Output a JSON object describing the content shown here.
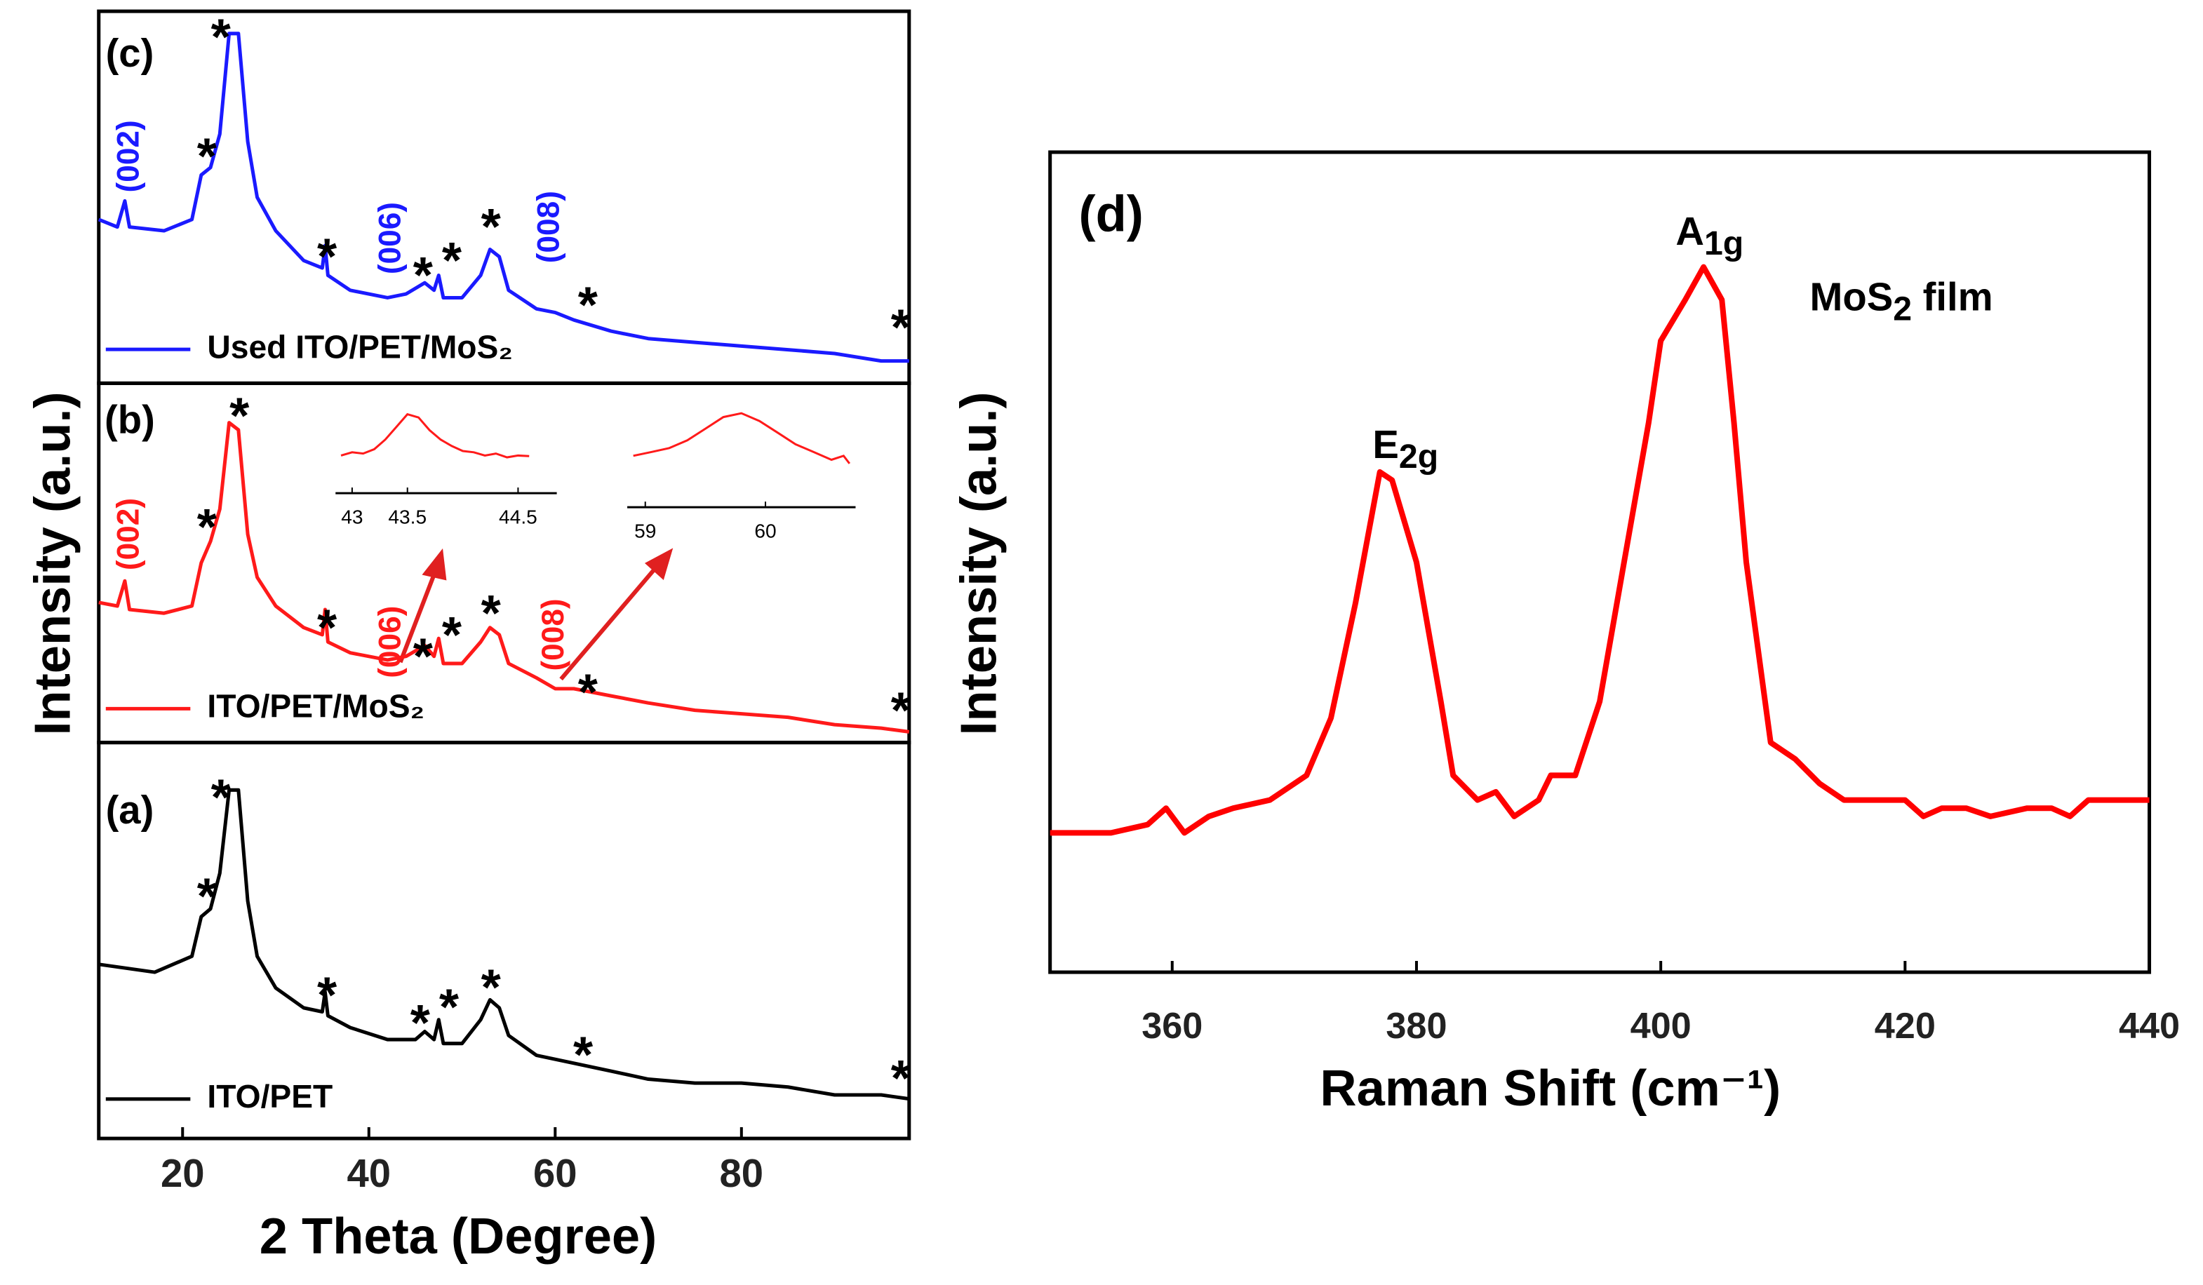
{
  "chart_data": [
    {
      "type": "line",
      "panel_label": "(c)",
      "ylabel": "Intensity (a.u.)",
      "xlim": [
        11,
        98
      ],
      "ylim": [
        0,
        100
      ],
      "series": [
        {
          "name": "Used ITO/PET/MoS₂",
          "color": "#1a1aff",
          "x": [
            11,
            13,
            13.8,
            14.3,
            18,
            21,
            22,
            23,
            24,
            25,
            26,
            27,
            28,
            30,
            33,
            35,
            35.3,
            35.6,
            38,
            42,
            44,
            46,
            47,
            47.5,
            48,
            50,
            52,
            53,
            54,
            55,
            58,
            60,
            62,
            66,
            70,
            75,
            80,
            85,
            90,
            95,
            98
          ],
          "values": [
            44,
            42,
            49,
            42,
            41,
            44,
            56,
            58,
            67,
            94,
            94,
            65,
            50,
            41,
            33,
            31,
            37,
            29,
            25,
            23,
            24,
            27,
            25,
            29,
            23,
            23,
            29,
            36,
            34,
            25,
            20,
            19,
            17,
            14,
            12,
            11,
            10,
            9,
            8,
            6,
            6
          ]
        }
      ],
      "annotations": [
        {
          "text": "*",
          "x": 24.1,
          "y": 95
        },
        {
          "text": "*",
          "x": 22.6,
          "y": 63
        },
        {
          "text": "*",
          "x": 35.5,
          "y": 36
        },
        {
          "text": "*",
          "x": 45.8,
          "y": 31
        },
        {
          "text": "*",
          "x": 48.9,
          "y": 35
        },
        {
          "text": "*",
          "x": 53.1,
          "y": 44
        },
        {
          "text": "*",
          "x": 63.5,
          "y": 23
        },
        {
          "text": "*",
          "x": 97.1,
          "y": 17
        }
      ],
      "hkl_labels": [
        {
          "text": "(002)",
          "x": 14.4,
          "y": 61
        },
        {
          "text": "(006)",
          "x": 42.5,
          "y": 39
        },
        {
          "text": "(008)",
          "x": 59.5,
          "y": 42
        }
      ]
    },
    {
      "type": "line",
      "panel_label": "(b)",
      "xlim": [
        11,
        98
      ],
      "ylim": [
        0,
        100
      ],
      "series": [
        {
          "name": "ITO/PET/MoS₂",
          "color": "#ff1a1a",
          "x": [
            11,
            13,
            13.8,
            14.3,
            18,
            21,
            22,
            23,
            24,
            25,
            26,
            27,
            28,
            30,
            33,
            35,
            35.3,
            35.6,
            38,
            42,
            44,
            46,
            47,
            47.5,
            48,
            50,
            52,
            53,
            54,
            55,
            58,
            60,
            62,
            66,
            70,
            75,
            80,
            85,
            90,
            95,
            98
          ],
          "values": [
            39,
            38,
            45,
            37,
            36,
            38,
            50,
            56,
            65,
            89,
            87,
            58,
            46,
            38,
            32,
            30,
            37,
            28,
            25,
            23,
            24,
            27,
            24,
            29,
            22,
            22,
            28,
            32,
            30,
            22,
            18,
            15,
            15,
            13,
            11,
            9,
            8,
            7,
            5,
            4,
            3
          ]
        }
      ],
      "annotations": [
        {
          "text": "*",
          "x": 26.1,
          "y": 93
        },
        {
          "text": "*",
          "x": 22.6,
          "y": 62
        },
        {
          "text": "*",
          "x": 35.5,
          "y": 34
        },
        {
          "text": "*",
          "x": 45.8,
          "y": 26
        },
        {
          "text": "*",
          "x": 48.9,
          "y": 32
        },
        {
          "text": "*",
          "x": 53.1,
          "y": 38
        },
        {
          "text": "*",
          "x": 63.5,
          "y": 16
        },
        {
          "text": "*",
          "x": 97.1,
          "y": 11
        }
      ],
      "hkl_labels": [
        {
          "text": "(002)",
          "x": 14.4,
          "y": 58
        },
        {
          "text": "(006)",
          "x": 42.5,
          "y": 28
        },
        {
          "text": "(008)",
          "x": 60,
          "y": 30
        }
      ],
      "insets": [
        {
          "xlim": [
            42.85,
            44.85
          ],
          "xticks": [
            43,
            43.5,
            44.5
          ],
          "ylim": [
            0,
            100
          ],
          "x": [
            42.9,
            43.0,
            43.1,
            43.2,
            43.3,
            43.4,
            43.5,
            43.6,
            43.7,
            43.8,
            43.9,
            44.0,
            44.1,
            44.2,
            44.3,
            44.4,
            44.5,
            44.6
          ],
          "values": [
            15,
            20,
            18,
            25,
            40,
            60,
            80,
            75,
            55,
            40,
            30,
            22,
            20,
            15,
            18,
            12,
            15,
            14
          ]
        },
        {
          "xlim": [
            58.85,
            60.75
          ],
          "xticks": [
            59,
            60
          ],
          "ylim": [
            0,
            100
          ],
          "x": [
            58.9,
            59.05,
            59.2,
            59.35,
            59.5,
            59.65,
            59.8,
            59.95,
            60.1,
            60.25,
            60.4,
            60.55,
            60.65,
            60.7
          ],
          "values": [
            30,
            35,
            40,
            50,
            65,
            80,
            85,
            75,
            60,
            45,
            35,
            25,
            30,
            20
          ]
        }
      ]
    },
    {
      "type": "line",
      "panel_label": "(a)",
      "xlabel": "2 Theta (Degree)",
      "xlim": [
        11,
        98
      ],
      "ylim": [
        0,
        100
      ],
      "xticks": [
        20,
        40,
        60,
        80
      ],
      "series": [
        {
          "name": "ITO/PET",
          "color": "#000000",
          "x": [
            11,
            17,
            21,
            22,
            23,
            24,
            25,
            26,
            27,
            28,
            30,
            33,
            35,
            35.3,
            35.6,
            38,
            42,
            45,
            46,
            47,
            47.5,
            48,
            50,
            52,
            53,
            54,
            55,
            58,
            62,
            66,
            70,
            75,
            80,
            85,
            90,
            95,
            98
          ],
          "values": [
            44,
            42,
            46,
            56,
            58,
            67,
            88,
            88,
            60,
            46,
            38,
            33,
            32,
            37,
            31,
            28,
            25,
            25,
            27,
            25,
            30,
            24,
            24,
            30,
            35,
            33,
            26,
            21,
            19,
            17,
            15,
            14,
            14,
            13,
            11,
            11,
            10
          ]
        }
      ],
      "annotations": [
        {
          "text": "*",
          "x": 24.1,
          "y": 88
        },
        {
          "text": "*",
          "x": 22.6,
          "y": 63
        },
        {
          "text": "*",
          "x": 35.5,
          "y": 38
        },
        {
          "text": "*",
          "x": 45.5,
          "y": 31
        },
        {
          "text": "*",
          "x": 48.6,
          "y": 35
        },
        {
          "text": "*",
          "x": 53.1,
          "y": 40
        },
        {
          "text": "*",
          "x": 63,
          "y": 23
        },
        {
          "text": "*",
          "x": 97.1,
          "y": 17
        }
      ]
    },
    {
      "type": "line",
      "ylabel": "Intensity (a.u.)",
      "xlabel": "Raman Shift (cm⁻¹)",
      "xlim": [
        350,
        440
      ],
      "ylim": [
        0,
        100
      ],
      "xticks": [
        360,
        380,
        400,
        420,
        440
      ],
      "series": [
        {
          "color": "#ff0000",
          "x": [
            350,
            355,
            358,
            359.5,
            361,
            363,
            365,
            368,
            371,
            373,
            375,
            377,
            378,
            380,
            382,
            383,
            385,
            386.5,
            388,
            390,
            391,
            393,
            395,
            397,
            399,
            400,
            402,
            403.5,
            405,
            406,
            407,
            409,
            411,
            413,
            415,
            420,
            421.5,
            423,
            425,
            427,
            430,
            432,
            433.5,
            435,
            440
          ],
          "values": [
            17,
            17,
            18,
            20,
            17,
            19,
            20,
            21,
            24,
            31,
            45,
            61,
            60,
            50,
            33,
            24,
            21,
            22,
            19,
            21,
            24,
            24,
            33,
            50,
            67,
            77,
            82,
            86,
            82,
            67,
            50,
            28,
            26,
            23,
            21,
            21,
            19,
            20,
            20,
            19,
            20,
            20,
            19,
            21,
            21
          ]
        }
      ],
      "annotations": [
        {
          "text": "(d)",
          "x": 355,
          "y": 92
        },
        {
          "text": "E",
          "sub": "2g",
          "x": 379.1,
          "y": 64
        },
        {
          "text": "A",
          "sub": "1g",
          "x": 404,
          "y": 90
        },
        {
          "text": "MoS",
          "sub": "2",
          "tail": "  film",
          "x": 419.7,
          "y": 82
        }
      ]
    }
  ]
}
